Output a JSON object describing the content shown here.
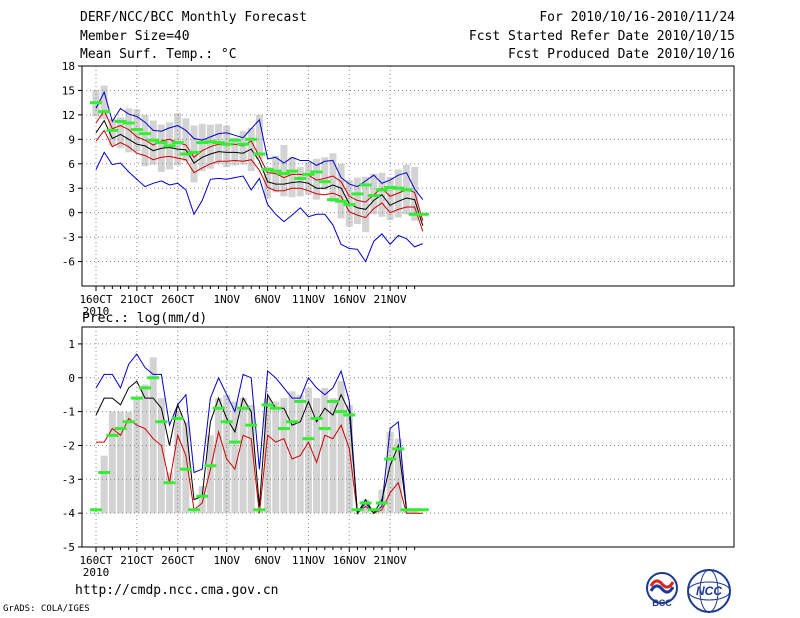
{
  "header": {
    "title": "DERF/NCC/BCC Monthly Forecast",
    "members": "Member Size=40",
    "variable": "Mean Surf. Temp.: °C",
    "period": "For 2010/10/16-2010/11/24",
    "start": "Fcst Started Refer Date 2010/10/15",
    "produced": "Fcst Produced Date 2010/10/16"
  },
  "footer": {
    "url": "http://cmdp.ncc.cma.gov.cn",
    "credit": "GrADS: COLA/IGES",
    "logo1": "BCC",
    "logo2": "NCC"
  },
  "colors": {
    "max": "#0000cc",
    "min": "#0000cc",
    "mean": "#000000",
    "low": "#cc0000",
    "median": "#33ee33",
    "box": "#d3d3d3",
    "grid": "#888888"
  },
  "chart_data": [
    {
      "type": "box",
      "title": "Mean Surf. Temp.: °C",
      "categories": [
        "160CT",
        "",
        "",
        "",
        "",
        "21OCT",
        "",
        "",
        "",
        "",
        "26OCT",
        "",
        "",
        "",
        "",
        "1NOV",
        "",
        "",
        "",
        "",
        "6NOV",
        "",
        "",
        "",
        "",
        "11NOV",
        "",
        "",
        "",
        "",
        "16NOV",
        "",
        "",
        "",
        "",
        "21NOV",
        "",
        "",
        "",
        ""
      ],
      "xticks": [
        {
          "i": 0,
          "label": "160CT"
        },
        {
          "i": 5,
          "label": "21OCT"
        },
        {
          "i": 10,
          "label": "26OCT"
        },
        {
          "i": 16,
          "label": "1NOV"
        },
        {
          "i": 21,
          "label": "6NOV"
        },
        {
          "i": 26,
          "label": "11NOV"
        },
        {
          "i": 31,
          "label": "16NOV"
        },
        {
          "i": 36,
          "label": "21NOV"
        }
      ],
      "year_label": "2010",
      "ylim": [
        -9,
        18
      ],
      "yticks": [
        -6,
        -3,
        0,
        3,
        6,
        9,
        12,
        15,
        18
      ],
      "series": [
        {
          "name": "max",
          "values": [
            12.8,
            14.8,
            11.2,
            12.8,
            12.1,
            11.8,
            11.1,
            10.1,
            10.0,
            10.4,
            10.7,
            10.1,
            9.1,
            8.9,
            9.3,
            9.7,
            9.8,
            9.5,
            9.2,
            10.3,
            11.4,
            6.6,
            6.8,
            6.1,
            6.8,
            6.4,
            6.4,
            5.8,
            6.3,
            6.4,
            4.3,
            3.5,
            3.2,
            3.9,
            4.6,
            3.6,
            4.0,
            4.6,
            4.9,
            2.9,
            1.6
          ]
        },
        {
          "name": "mean",
          "values": [
            9.8,
            11.3,
            9.1,
            9.6,
            9.0,
            8.4,
            8.2,
            7.6,
            7.9,
            8.0,
            7.8,
            7.7,
            6.1,
            6.8,
            7.2,
            7.5,
            7.4,
            7.4,
            7.3,
            7.8,
            6.3,
            3.8,
            3.5,
            3.5,
            3.7,
            3.8,
            3.6,
            3.0,
            3.0,
            3.4,
            3.0,
            1.1,
            0.6,
            0.4,
            1.5,
            2.2,
            0.9,
            1.4,
            1.8,
            1.6,
            -1.6
          ]
        },
        {
          "name": "low",
          "values": [
            8.8,
            10.1,
            8.1,
            8.6,
            8.1,
            7.3,
            7.0,
            6.5,
            6.8,
            6.9,
            6.7,
            6.5,
            4.9,
            5.5,
            6.0,
            6.3,
            6.3,
            6.4,
            6.3,
            6.5,
            5.2,
            3.1,
            2.7,
            2.7,
            3.0,
            3.0,
            2.7,
            2.3,
            2.2,
            2.4,
            2.0,
            0.1,
            -0.3,
            -0.6,
            0.5,
            1.2,
            0.0,
            0.4,
            0.7,
            0.7,
            -2.3
          ]
        },
        {
          "name": "upper",
          "values": [
            11.0,
            12.5,
            10.3,
            10.7,
            10.2,
            9.3,
            8.9,
            8.3,
            8.8,
            9.0,
            8.6,
            8.3,
            6.8,
            7.6,
            8.1,
            8.4,
            8.4,
            8.4,
            8.2,
            8.8,
            6.9,
            4.9,
            4.8,
            4.3,
            4.7,
            4.7,
            4.6,
            4.0,
            4.2,
            4.5,
            3.8,
            2.0,
            1.5,
            1.3,
            2.2,
            3.0,
            2.0,
            2.4,
            2.8,
            2.5,
            -1.0
          ]
        },
        {
          "name": "min",
          "values": [
            5.3,
            7.4,
            5.9,
            6.1,
            5.0,
            4.1,
            3.2,
            3.6,
            3.9,
            3.4,
            3.6,
            2.8,
            -0.2,
            1.5,
            4.1,
            4.2,
            4.1,
            4.3,
            4.5,
            2.8,
            4.2,
            1.0,
            -0.2,
            -1.1,
            -0.3,
            0.6,
            -0.5,
            -0.2,
            -0.2,
            -1.5,
            -3.9,
            -4.4,
            -4.5,
            -6.0,
            -3.5,
            -2.6,
            -3.9,
            -2.8,
            -3.2,
            -4.2,
            -3.8
          ]
        },
        {
          "name": "box_low",
          "values": [
            11.8,
            11.5,
            8.2,
            7.9,
            7.4,
            7.5,
            5.7,
            5.9,
            5.0,
            5.3,
            5.8,
            6.3,
            3.7,
            5.1,
            5.4,
            6.0,
            5.6,
            5.8,
            5.9,
            5.1,
            6.6,
            1.8,
            2.5,
            2.0,
            1.9,
            2.0,
            2.2,
            1.6,
            2.8,
            1.3,
            -0.7,
            -1.7,
            -1.4,
            -2.4,
            -0.2,
            -0.5,
            -0.9,
            -0.6,
            -0.2,
            -1.0,
            -0.5
          ]
        },
        {
          "name": "box_high",
          "values": [
            15.0,
            15.6,
            11.5,
            11.7,
            12.8,
            12.7,
            12.0,
            11.3,
            10.8,
            11.1,
            12.2,
            11.6,
            10.7,
            10.9,
            10.8,
            10.9,
            10.7,
            9.2,
            10.0,
            10.4,
            12.0,
            5.6,
            7.0,
            8.3,
            6.8,
            5.6,
            6.2,
            6.6,
            6.8,
            7.3,
            6.0,
            4.0,
            4.3,
            4.4,
            4.8,
            4.9,
            4.4,
            5.3,
            5.9,
            5.6,
            3.8
          ]
        },
        {
          "name": "median",
          "values": [
            13.5,
            12.4,
            10.1,
            11.2,
            11.0,
            10.2,
            9.7,
            8.9,
            8.6,
            8.2,
            8.6,
            7.2,
            7.4,
            8.6,
            8.7,
            8.6,
            8.4,
            8.9,
            8.4,
            9.0,
            7.2,
            5.3,
            5.1,
            4.8,
            5.1,
            4.2,
            4.7,
            5.0,
            3.8,
            1.6,
            1.4,
            1.0,
            2.3,
            3.4,
            2.1,
            2.8,
            3.1,
            3.0,
            2.8,
            -0.2,
            -0.2
          ]
        }
      ]
    },
    {
      "type": "box",
      "title": "Prec.: log(mm/d)",
      "categories": [
        "160CT",
        "",
        "",
        "",
        "",
        "21OCT",
        "",
        "",
        "",
        "",
        "26OCT",
        "",
        "",
        "",
        "",
        "1NOV",
        "",
        "",
        "",
        "",
        "6NOV",
        "",
        "",
        "",
        "",
        "11NOV",
        "",
        "",
        "",
        "",
        "16NOV",
        "",
        "",
        "",
        "",
        "21NOV",
        "",
        "",
        "",
        ""
      ],
      "xticks": [
        {
          "i": 0,
          "label": "160CT"
        },
        {
          "i": 5,
          "label": "21OCT"
        },
        {
          "i": 10,
          "label": "26OCT"
        },
        {
          "i": 16,
          "label": "1NOV"
        },
        {
          "i": 21,
          "label": "6NOV"
        },
        {
          "i": 26,
          "label": "11NOV"
        },
        {
          "i": 31,
          "label": "16NOV"
        },
        {
          "i": 36,
          "label": "21NOV"
        }
      ],
      "year_label": "2010",
      "ylim": [
        -5,
        1.5
      ],
      "yticks": [
        -5,
        -4,
        -3,
        -2,
        -1,
        0,
        1
      ],
      "series": [
        {
          "name": "max",
          "values": [
            -0.3,
            0.1,
            0.1,
            -0.3,
            0.4,
            0.7,
            0.3,
            0.1,
            0.1,
            -1.4,
            -0.8,
            -0.5,
            -2.8,
            -2.7,
            -0.6,
            0.0,
            -0.5,
            -1.0,
            0.1,
            0.0,
            -2.7,
            0.2,
            0.0,
            -0.3,
            -0.6,
            -0.6,
            0.0,
            -0.3,
            -0.5,
            -0.3,
            0.2,
            -0.7,
            -4.0,
            -3.7,
            -4.0,
            -3.8,
            -1.5,
            -1.3,
            -3.9,
            -3.9,
            -3.9
          ]
        },
        {
          "name": "mean",
          "values": [
            -1.1,
            -0.6,
            -0.6,
            -0.8,
            -0.3,
            -0.1,
            -0.6,
            -0.6,
            -0.9,
            -2.0,
            -0.8,
            -1.4,
            -3.6,
            -3.5,
            -1.3,
            -0.6,
            -1.2,
            -1.6,
            -0.6,
            -1.0,
            -3.8,
            -0.5,
            -0.9,
            -0.9,
            -1.4,
            -1.3,
            -0.7,
            -1.3,
            -0.9,
            -1.1,
            -0.5,
            -1.0,
            -4.0,
            -3.6,
            -4.0,
            -3.6,
            -2.6,
            -2.0,
            -3.9,
            -3.9,
            -3.9
          ]
        },
        {
          "name": "low",
          "values": [
            -1.9,
            -1.9,
            -1.5,
            -1.7,
            -1.2,
            -1.4,
            -1.5,
            -1.8,
            -2.0,
            -3.1,
            -1.7,
            -2.3,
            -3.9,
            -3.7,
            -2.7,
            -1.6,
            -2.4,
            -2.7,
            -1.7,
            -1.8,
            -4.0,
            -1.7,
            -1.9,
            -1.8,
            -2.4,
            -2.3,
            -1.9,
            -2.5,
            -1.7,
            -1.8,
            -1.4,
            -2.1,
            -4.0,
            -3.8,
            -4.0,
            -3.9,
            -3.4,
            -3.1,
            -4.0,
            -4.0,
            -4.0
          ]
        },
        {
          "name": "median",
          "values": [
            -3.9,
            -2.8,
            -1.7,
            -1.5,
            -1.3,
            -0.6,
            -0.3,
            0.0,
            -1.3,
            -3.1,
            -1.2,
            -2.7,
            -3.9,
            -3.5,
            -2.6,
            -0.9,
            -1.3,
            -1.9,
            -0.9,
            -1.4,
            -3.9,
            -0.8,
            -0.9,
            -1.5,
            -1.3,
            -0.7,
            -1.8,
            -1.2,
            -1.5,
            -0.7,
            -1.0,
            -1.1,
            -3.9,
            -3.7,
            -3.9,
            -3.7,
            -2.4,
            -2.1,
            -3.9,
            -3.9,
            -3.9
          ]
        },
        {
          "name": "box_high",
          "values": [
            -4.0,
            -2.3,
            -1.0,
            -1.0,
            -1.0,
            -0.6,
            -0.2,
            0.6,
            -0.6,
            -2.8,
            -1.0,
            -1.3,
            -3.9,
            -3.2,
            -1.7,
            -0.6,
            -0.5,
            -0.7,
            -0.6,
            -0.8,
            -3.9,
            -0.6,
            -0.7,
            -0.6,
            -0.4,
            -0.5,
            -0.3,
            -0.6,
            -0.3,
            -0.6,
            -0.1,
            -0.8,
            -4.0,
            -3.6,
            -4.0,
            -3.3,
            -1.6,
            -1.8,
            -3.9,
            -3.9,
            -3.9
          ]
        },
        {
          "name": "box_low",
          "values": [
            -4.0,
            -4.0,
            -4.0,
            -4.0,
            -4.0,
            -4.0,
            -4.0,
            -4.0,
            -4.0,
            -4.0,
            -4.0,
            -4.0,
            -4.0,
            -4.0,
            -4.0,
            -4.0,
            -4.0,
            -4.0,
            -4.0,
            -4.0,
            -4.0,
            -4.0,
            -4.0,
            -4.0,
            -4.0,
            -4.0,
            -4.0,
            -4.0,
            -4.0,
            -4.0,
            -4.0,
            -4.0,
            -4.0,
            -4.0,
            -4.0,
            -4.0,
            -4.0,
            -4.0,
            -4.0,
            -4.0,
            -4.0
          ]
        }
      ]
    }
  ]
}
